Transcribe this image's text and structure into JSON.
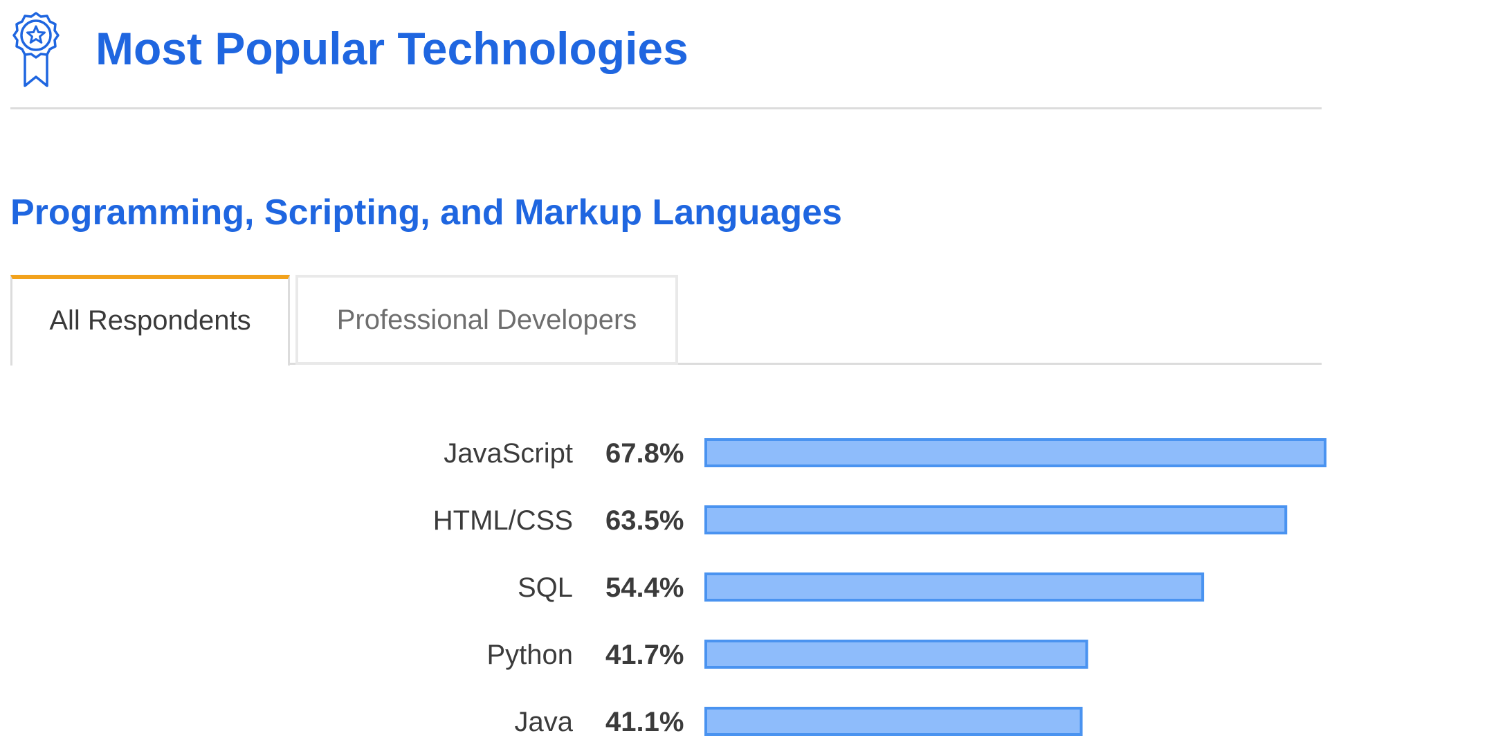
{
  "header": {
    "title": "Most Popular Technologies",
    "icon": "award-ribbon-icon"
  },
  "section": {
    "title": "Programming, Scripting, and Markup Languages"
  },
  "tabs": [
    {
      "label": "All Respondents",
      "active": true
    },
    {
      "label": "Professional Developers",
      "active": false
    }
  ],
  "colors": {
    "accent": "#1f66e0",
    "tab_indicator": "#f2a21c",
    "bar_fill": "#8ebcfb",
    "bar_stroke": "#4a93f0"
  },
  "chart_data": {
    "type": "bar",
    "orientation": "horizontal",
    "categories": [
      "JavaScript",
      "HTML/CSS",
      "SQL",
      "Python",
      "Java"
    ],
    "values": [
      67.8,
      63.5,
      54.4,
      41.7,
      41.1
    ],
    "value_labels": [
      "67.8%",
      "63.5%",
      "54.4%",
      "41.7%",
      "41.1%"
    ],
    "unit": "%",
    "xlim": [
      0,
      67.8
    ],
    "grid": false,
    "legend": "none"
  }
}
